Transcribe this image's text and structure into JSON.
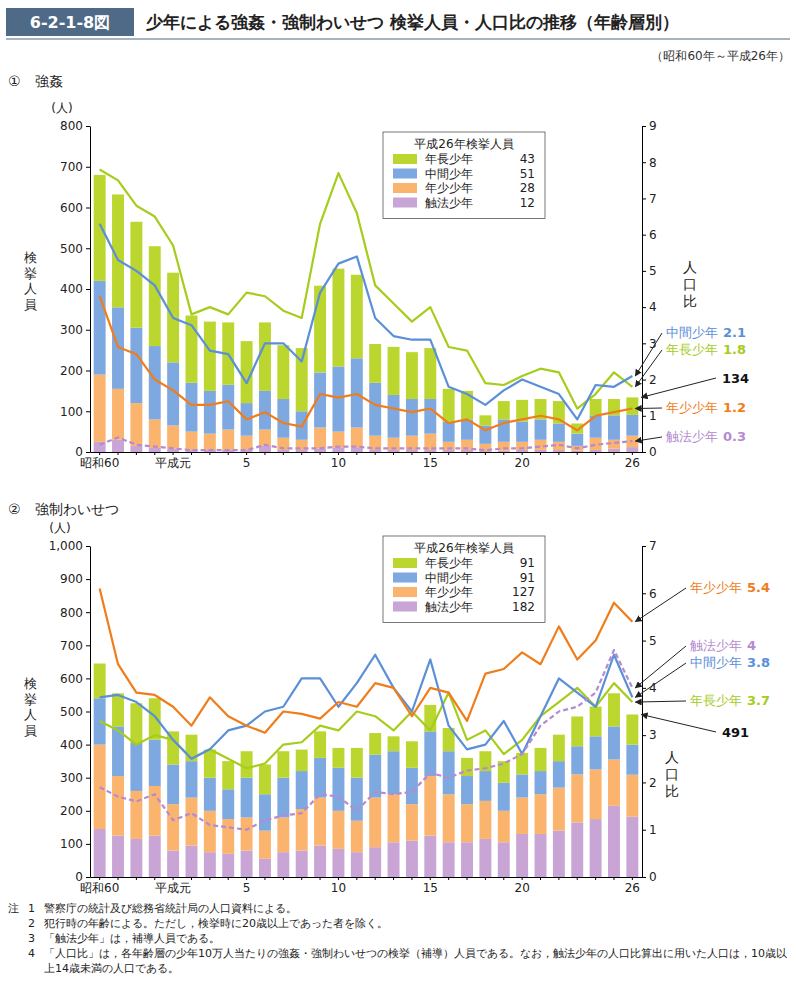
{
  "figure": {
    "number": "6-2-1-8図",
    "title": "少年による強姦・強制わいせつ 検挙人員・人口比の推移（年齢層別）",
    "period": "（昭和60年～平成26年）"
  },
  "chart_data": [
    {
      "type": "bar",
      "title": "①　強姦",
      "y_label": "検挙人員",
      "y_unit": "(人)",
      "y2_label": "人口比",
      "legend_title": "平成26年検挙人員",
      "legend": "top",
      "stacked": true,
      "grid": false,
      "categories": [
        "昭和60",
        null,
        null,
        null,
        "平成元",
        null,
        null,
        null,
        "5",
        null,
        null,
        null,
        null,
        "10",
        null,
        null,
        null,
        null,
        "15",
        null,
        null,
        null,
        null,
        "20",
        null,
        null,
        null,
        null,
        null,
        "26"
      ],
      "ylim": [
        0,
        800
      ],
      "yticks": [
        0,
        100,
        200,
        300,
        400,
        500,
        600,
        700,
        800
      ],
      "y2lim": [
        0,
        9
      ],
      "y2ticks": [
        0,
        1,
        2,
        3,
        4,
        5,
        6,
        7,
        8,
        9
      ],
      "series": [
        {
          "name": "年長少年",
          "type": "bar",
          "color": "#bcd630",
          "values": [
            260,
            277,
            260,
            245,
            220,
            165,
            170,
            153,
            152,
            168,
            132,
            155,
            213,
            240,
            205,
            95,
            118,
            115,
            125,
            80,
            70,
            25,
            45,
            53,
            50,
            55,
            25,
            40,
            40,
            43
          ]
        },
        {
          "name": "中間少年",
          "type": "bar",
          "color": "#7ea8e0",
          "values": [
            230,
            200,
            185,
            180,
            155,
            120,
            105,
            110,
            80,
            95,
            95,
            70,
            135,
            160,
            170,
            130,
            105,
            90,
            85,
            50,
            50,
            45,
            55,
            50,
            50,
            45,
            30,
            55,
            60,
            51
          ]
        },
        {
          "name": "年少少年",
          "type": "bar",
          "color": "#fbb46e",
          "values": [
            165,
            125,
            105,
            70,
            57,
            45,
            40,
            50,
            35,
            40,
            30,
            25,
            52,
            40,
            50,
            35,
            30,
            35,
            40,
            20,
            25,
            17,
            22,
            20,
            25,
            20,
            12,
            30,
            22,
            28
          ]
        },
        {
          "name": "触法少年",
          "type": "bar",
          "color": "#c9a5d6",
          "values": [
            25,
            30,
            15,
            10,
            8,
            5,
            5,
            5,
            5,
            15,
            5,
            5,
            8,
            10,
            10,
            5,
            5,
            5,
            5,
            5,
            5,
            3,
            3,
            5,
            5,
            5,
            3,
            5,
            8,
            12
          ]
        },
        {
          "name": "年長少年",
          "type": "line",
          "axis": "y2",
          "color": "#a6cc1c",
          "line_style": "solid",
          "values": [
            7.8,
            7.5,
            6.8,
            6.5,
            5.7,
            3.8,
            4.0,
            3.8,
            4.4,
            4.3,
            3.9,
            3.7,
            6.3,
            7.7,
            6.6,
            4.6,
            4.1,
            3.6,
            4.0,
            2.9,
            2.8,
            1.9,
            1.85,
            2.1,
            2.3,
            2.2,
            1.2,
            1.6,
            2.2,
            1.8
          ]
        },
        {
          "name": "中間少年",
          "type": "line",
          "axis": "y2",
          "color": "#5b8fd8",
          "line_style": "solid",
          "values": [
            6.3,
            5.3,
            5.0,
            4.6,
            3.7,
            3.5,
            2.8,
            2.7,
            1.9,
            3.0,
            3.0,
            2.5,
            4.4,
            5.2,
            5.4,
            3.7,
            3.2,
            3.1,
            3.1,
            1.8,
            1.6,
            1.3,
            1.7,
            2.0,
            1.8,
            1.6,
            0.9,
            1.85,
            1.8,
            2.1
          ]
        },
        {
          "name": "年少少年",
          "type": "line",
          "axis": "y2",
          "color": "#f07d1a",
          "line_style": "solid",
          "values": [
            4.3,
            2.9,
            2.7,
            2.0,
            1.7,
            1.3,
            1.3,
            1.4,
            0.9,
            1.1,
            0.8,
            0.7,
            1.6,
            1.5,
            1.6,
            1.3,
            1.2,
            1.1,
            1.2,
            0.8,
            0.9,
            0.6,
            0.8,
            0.9,
            1.0,
            0.9,
            0.6,
            1.0,
            1.1,
            1.2
          ]
        },
        {
          "name": "触法少年",
          "type": "line",
          "axis": "y2",
          "color": "#b58bd0",
          "line_style": "dashed",
          "values": [
            0.2,
            0.4,
            0.2,
            0.15,
            0.1,
            0.05,
            0.05,
            0.05,
            0.05,
            0.2,
            0.1,
            0.1,
            0.1,
            0.15,
            0.15,
            0.1,
            0.1,
            0.1,
            0.1,
            0.1,
            0.1,
            0.05,
            0.1,
            0.1,
            0.15,
            0.2,
            0.1,
            0.2,
            0.25,
            0.3
          ]
        }
      ],
      "annotations": [
        "134"
      ]
    },
    {
      "type": "bar",
      "title": "②　強制わいせつ",
      "y_label": "検挙人員",
      "y_unit": "(人)",
      "y2_label": "人口比",
      "legend_title": "平成26年検挙人員",
      "legend": "top",
      "stacked": true,
      "grid": false,
      "categories": [
        "昭和60",
        null,
        null,
        null,
        "平成元",
        null,
        null,
        null,
        "5",
        null,
        null,
        null,
        null,
        "10",
        null,
        null,
        null,
        null,
        "15",
        null,
        null,
        null,
        null,
        "20",
        null,
        null,
        null,
        null,
        null,
        "26"
      ],
      "ylim": [
        0,
        1000
      ],
      "yticks": [
        0,
        100,
        200,
        300,
        400,
        500,
        600,
        700,
        800,
        900,
        {
          "value": 1000,
          "label": "1,000"
        }
      ],
      "y2lim": [
        0,
        7
      ],
      "y2ticks": [
        0,
        1,
        2,
        3,
        4,
        5,
        6,
        7
      ],
      "series": [
        {
          "name": "年長少年",
          "type": "bar",
          "color": "#bcd630",
          "values": [
            105,
            100,
            120,
            125,
            100,
            80,
            85,
            85,
            80,
            90,
            80,
            65,
            80,
            60,
            90,
            65,
            45,
            80,
            80,
            70,
            55,
            60,
            65,
            65,
            70,
            80,
            90,
            90,
            100,
            91
          ]
        },
        {
          "name": "中間少年",
          "type": "bar",
          "color": "#7ea8e0",
          "values": [
            140,
            150,
            145,
            140,
            120,
            110,
            100,
            90,
            120,
            110,
            120,
            115,
            120,
            130,
            130,
            130,
            130,
            110,
            135,
            130,
            85,
            90,
            85,
            70,
            70,
            80,
            85,
            100,
            100,
            91
          ]
        },
        {
          "name": "年少少年",
          "type": "bar",
          "color": "#fbb46e",
          "values": [
            255,
            180,
            145,
            150,
            140,
            145,
            125,
            105,
            100,
            85,
            105,
            125,
            145,
            115,
            95,
            150,
            145,
            110,
            180,
            145,
            115,
            115,
            95,
            110,
            120,
            130,
            145,
            150,
            140,
            127
          ]
        },
        {
          "name": "触法少年",
          "type": "bar",
          "color": "#c9a5d6",
          "values": [
            145,
            125,
            115,
            125,
            80,
            95,
            75,
            70,
            80,
            55,
            75,
            80,
            95,
            85,
            75,
            90,
            105,
            110,
            125,
            105,
            105,
            115,
            105,
            130,
            130,
            140,
            165,
            175,
            215,
            182
          ]
        },
        {
          "name": "年長少年",
          "type": "line",
          "axis": "y2",
          "color": "#a6cc1c",
          "line_style": "solid",
          "values": [
            3.3,
            3.1,
            2.8,
            3.0,
            2.9,
            2.5,
            2.7,
            2.5,
            2.3,
            2.4,
            2.8,
            2.85,
            3.2,
            3.1,
            3.5,
            3.4,
            3.1,
            3.5,
            3.1,
            3.9,
            2.9,
            3.1,
            2.6,
            2.9,
            3.4,
            3.7,
            4.0,
            3.6,
            4.1,
            3.7
          ]
        },
        {
          "name": "中間少年",
          "type": "line",
          "axis": "y2",
          "color": "#5b8fd8",
          "line_style": "solid",
          "values": [
            3.8,
            3.85,
            3.7,
            3.4,
            2.9,
            2.5,
            2.7,
            3.1,
            3.2,
            3.5,
            3.6,
            4.2,
            4.2,
            3.6,
            4.1,
            4.7,
            4.0,
            3.5,
            4.6,
            3.2,
            2.7,
            2.8,
            3.3,
            2.6,
            3.4,
            4.2,
            3.9,
            3.6,
            4.7,
            3.8
          ]
        },
        {
          "name": "年少少年",
          "type": "line",
          "axis": "y2",
          "color": "#f07d1a",
          "line_style": "solid",
          "values": [
            6.1,
            4.5,
            3.9,
            3.85,
            3.6,
            3.2,
            3.8,
            3.4,
            3.2,
            3.05,
            3.5,
            3.45,
            3.35,
            3.7,
            3.6,
            4.1,
            4.0,
            3.4,
            4.0,
            3.9,
            3.3,
            4.3,
            4.4,
            4.75,
            4.5,
            5.3,
            4.6,
            5.0,
            5.8,
            5.4
          ]
        },
        {
          "name": "触法少年",
          "type": "line",
          "axis": "y2",
          "color": "#b58bd0",
          "line_style": "dashed",
          "values": [
            1.9,
            1.7,
            1.6,
            1.75,
            1.2,
            1.35,
            1.1,
            1.05,
            1.0,
            1.2,
            1.3,
            1.35,
            1.75,
            1.7,
            1.4,
            1.8,
            1.75,
            1.8,
            2.2,
            2.1,
            2.25,
            2.3,
            2.4,
            2.6,
            3.2,
            3.5,
            3.6,
            3.9,
            4.8,
            4.0
          ]
        }
      ],
      "annotations": [
        "491"
      ]
    }
  ],
  "notes": {
    "label": "注",
    "items": [
      {
        "number": "1",
        "text": "警察庁の統計及び総務省統計局の人口資料による。"
      },
      {
        "number": "2",
        "text": "犯行時の年齢による。ただし，検挙時に20歳以上であった者を除く。"
      },
      {
        "number": "3",
        "text": "「触法少年」は，補導人員である。"
      },
      {
        "number": "4",
        "text": "「人口比」は，各年齢層の少年10万人当たりの強姦・強制わいせつの検挙（補導）人員である。なお，触法少年の人口比算出に用いた人口は，10歳以上14歳未満の人口である。"
      }
    ]
  }
}
